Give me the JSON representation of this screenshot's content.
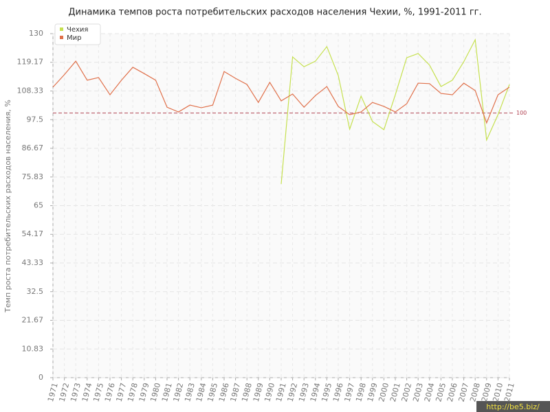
{
  "chart_data": {
    "type": "line",
    "title": "Динамика темпов роста потребительских расходов населения Чехии, %, 1991-2011 гг.",
    "y_label": "Темп роста потребительских расходов населения, %",
    "categories": [
      "1971",
      "1972",
      "1973",
      "1974",
      "1975",
      "1976",
      "1977",
      "1978",
      "1979",
      "1980",
      "1981",
      "1982",
      "1983",
      "1984",
      "1985",
      "1986",
      "1987",
      "1988",
      "1989",
      "1990",
      "1991",
      "1992",
      "1993",
      "1994",
      "1995",
      "1996",
      "1997",
      "1998",
      "1999",
      "2000",
      "2001",
      "2002",
      "2003",
      "2004",
      "2005",
      "2006",
      "2007",
      "2008",
      "2009",
      "2010",
      "2011"
    ],
    "series": [
      {
        "name": "Чехия",
        "color": "#c5e04e",
        "values": [
          null,
          null,
          null,
          null,
          null,
          null,
          null,
          null,
          null,
          null,
          null,
          null,
          null,
          null,
          null,
          null,
          null,
          null,
          null,
          null,
          73.2,
          121.2,
          117.5,
          119.6,
          125.1,
          114.2,
          93.9,
          106.4,
          96.8,
          93.7,
          106.9,
          120.9,
          122.5,
          118.1,
          110.0,
          112.4,
          119.4,
          127.7,
          89.8,
          99.4,
          110.8
        ]
      },
      {
        "name": "Мир",
        "color": "#e0704a",
        "values": [
          109.8,
          114.5,
          119.6,
          112.4,
          113.4,
          106.9,
          112.4,
          117.3,
          114.9,
          112.4,
          102.2,
          100.4,
          103.0,
          102.0,
          103.0,
          115.7,
          113.1,
          110.8,
          104.0,
          111.6,
          104.6,
          107.2,
          102.2,
          106.6,
          110.0,
          102.5,
          99.4,
          100.4,
          104.0,
          102.5,
          100.4,
          103.5,
          111.3,
          111.1,
          107.4,
          106.9,
          111.3,
          108.5,
          96.3,
          106.9,
          109.8
        ]
      }
    ],
    "ylim": [
      0,
      130
    ],
    "yticks": [
      0,
      10.83,
      21.67,
      32.5,
      43.33,
      54.17,
      65,
      75.83,
      86.67,
      97.5,
      108.33,
      119.17,
      130
    ],
    "grid": true,
    "reference_line": 100,
    "reference_color": "#b04050",
    "legend": "top-left"
  },
  "watermark": "http://be5.biz/"
}
